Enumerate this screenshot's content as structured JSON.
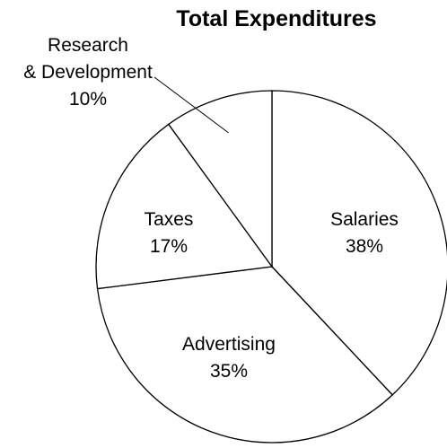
{
  "chart_data": {
    "type": "pie",
    "title": "Total Expenditures",
    "slices": [
      {
        "label": "Salaries",
        "value": 38,
        "percent_label": "38%"
      },
      {
        "label": "Advertising",
        "value": 35,
        "percent_label": "35%"
      },
      {
        "label": "Taxes",
        "value": 17,
        "percent_label": "17%"
      },
      {
        "label": "Research & Development",
        "label_lines": [
          "Research",
          "& Development"
        ],
        "value": 10,
        "percent_label": "10%"
      }
    ],
    "start_angle": "12 o'clock",
    "direction": "clockwise",
    "fill_color": "#ffffff",
    "stroke_color": "#000000"
  }
}
